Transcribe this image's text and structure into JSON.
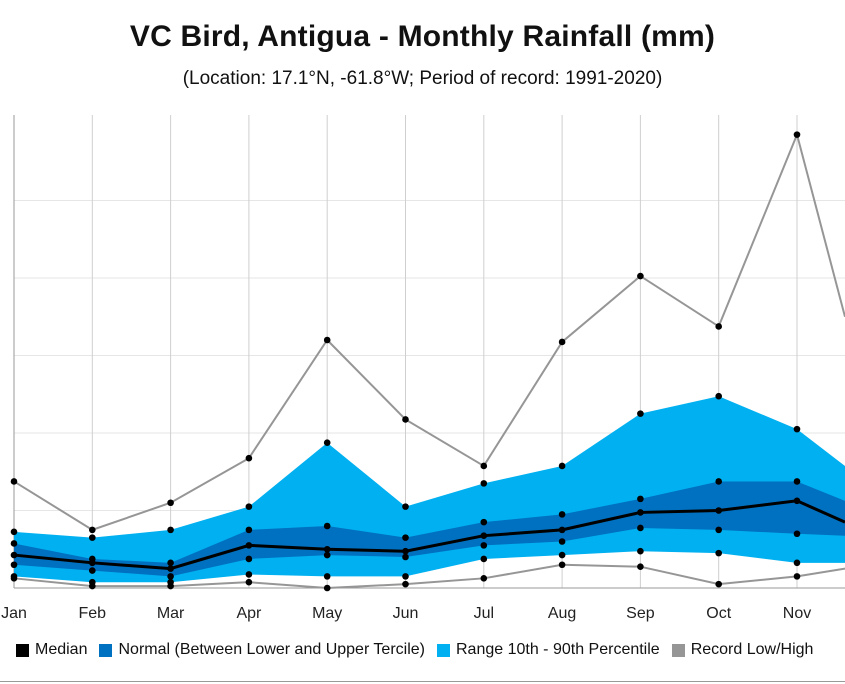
{
  "chart_data": {
    "type": "area",
    "title": "VC Bird, Antigua - Monthly Rainfall (mm)",
    "subtitle": "(Location: 17.1°N, -61.8°W; Period of record: 1991-2020)",
    "categories": [
      "Jan",
      "Feb",
      "Mar",
      "Apr",
      "May",
      "Jun",
      "Jul",
      "Aug",
      "Sep",
      "Oct",
      "Nov"
    ],
    "ylim": [
      0,
      240
    ],
    "grid": true,
    "legend_position": "bottom",
    "series": [
      {
        "name": "Median",
        "type": "line",
        "color": "#000000",
        "values": [
          17,
          13,
          10,
          22,
          20,
          19,
          27,
          30,
          39,
          40,
          45
        ]
      },
      {
        "name": "Normal (Between Lower and Upper Tercile)",
        "type": "band",
        "color": "#0070c0",
        "lower": [
          12,
          9,
          6,
          15,
          17,
          16,
          22,
          24,
          31,
          30,
          28
        ],
        "upper": [
          23,
          15,
          13,
          30,
          32,
          26,
          34,
          38,
          46,
          55,
          55
        ]
      },
      {
        "name": "Range 10th - 90th Percentile",
        "type": "band",
        "color": "#00b0f0",
        "lower": [
          6,
          3,
          3,
          7,
          6,
          6,
          15,
          17,
          19,
          18,
          13
        ],
        "upper": [
          29,
          26,
          30,
          42,
          75,
          42,
          54,
          63,
          90,
          99,
          82
        ]
      },
      {
        "name": "Record Low/High",
        "type": "range-lines",
        "color": "#969696",
        "lower": [
          5,
          1,
          1,
          3,
          0,
          2,
          5,
          12,
          11,
          2,
          6
        ],
        "upper": [
          55,
          30,
          44,
          67,
          128,
          87,
          63,
          127,
          161,
          135,
          234
        ]
      }
    ],
    "edge_values": {
      "median": 34,
      "normal_lower": 27,
      "normal_upper": 45,
      "p10": 13,
      "p90": 63,
      "record_low": 10,
      "record_high": 140
    }
  }
}
